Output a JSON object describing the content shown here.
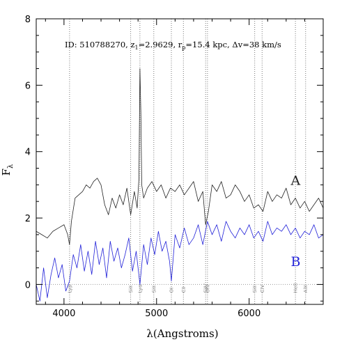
{
  "chart_data": {
    "type": "line",
    "xlabel": "λ(Angstroms)",
    "ylabel": "F",
    "ylabel_subscript": "λ",
    "xlim": [
      3700,
      6800
    ],
    "ylim": [
      -0.6,
      8
    ],
    "x_ticks": [
      4000,
      5000,
      6000
    ],
    "y_ticks": [
      0,
      2,
      4,
      6,
      8
    ],
    "grid": false,
    "annotation": {
      "prefix": "ID: 510788270, z",
      "z_sub": "1",
      "z_value": "=2.9629, r",
      "r_sub": "p",
      "rest": "=15.4 kpc, Δv=38 km/s"
    },
    "spectral_lines": [
      {
        "name": "Lyβ",
        "x": 4060
      },
      {
        "name": "SiII",
        "x": 4720
      },
      {
        "name": "Lyα",
        "x": 4820
      },
      {
        "name": "SiII",
        "x": 4970
      },
      {
        "name": "OI",
        "x": 5160
      },
      {
        "name": "CII",
        "x": 5290
      },
      {
        "name": "SiIV",
        "x": 5530
      },
      {
        "name": "OIV",
        "x": 5550
      },
      {
        "name": "SiII",
        "x": 6060
      },
      {
        "name": "CIV",
        "x": 6140
      },
      {
        "name": "HeII",
        "x": 6500
      },
      {
        "name": "AlII",
        "x": 6610
      }
    ],
    "series": [
      {
        "name": "A",
        "color": "#222222",
        "label_at": [
          6450,
          3.0
        ],
        "x": [
          3700,
          3760,
          3820,
          3880,
          3940,
          4000,
          4040,
          4060,
          4080,
          4120,
          4160,
          4200,
          4240,
          4280,
          4320,
          4360,
          4400,
          4440,
          4480,
          4520,
          4560,
          4600,
          4640,
          4680,
          4720,
          4760,
          4790,
          4810,
          4820,
          4830,
          4840,
          4860,
          4900,
          4950,
          5000,
          5050,
          5100,
          5150,
          5200,
          5250,
          5300,
          5350,
          5400,
          5450,
          5500,
          5530,
          5560,
          5600,
          5650,
          5700,
          5750,
          5800,
          5850,
          5900,
          5950,
          6000,
          6050,
          6100,
          6150,
          6200,
          6250,
          6300,
          6350,
          6400,
          6450,
          6500,
          6550,
          6600,
          6650,
          6700,
          6750,
          6800
        ],
        "y": [
          1.6,
          1.5,
          1.4,
          1.6,
          1.7,
          1.8,
          1.5,
          1.2,
          1.9,
          2.6,
          2.7,
          2.8,
          3.0,
          2.9,
          3.1,
          3.2,
          3.0,
          2.4,
          2.1,
          2.6,
          2.3,
          2.7,
          2.4,
          2.9,
          2.1,
          2.8,
          2.3,
          3.2,
          6.5,
          5.2,
          3.0,
          2.6,
          2.9,
          3.1,
          2.8,
          3.0,
          2.6,
          2.9,
          2.8,
          3.0,
          2.7,
          2.9,
          3.1,
          2.5,
          2.8,
          1.8,
          2.2,
          3.0,
          2.8,
          3.1,
          2.6,
          2.7,
          3.0,
          2.8,
          2.5,
          2.7,
          2.3,
          2.4,
          2.2,
          2.8,
          2.5,
          2.7,
          2.6,
          2.9,
          2.4,
          2.6,
          2.3,
          2.5,
          2.2,
          2.4,
          2.6,
          2.3
        ]
      },
      {
        "name": "B",
        "color": "#2020d8",
        "label_at": [
          6450,
          0.55
        ],
        "x": [
          3700,
          3740,
          3780,
          3820,
          3860,
          3900,
          3940,
          3980,
          4020,
          4060,
          4100,
          4140,
          4180,
          4220,
          4260,
          4300,
          4340,
          4380,
          4420,
          4460,
          4500,
          4540,
          4580,
          4620,
          4660,
          4700,
          4740,
          4780,
          4820,
          4860,
          4900,
          4940,
          4980,
          5020,
          5060,
          5100,
          5140,
          5160,
          5200,
          5250,
          5300,
          5350,
          5400,
          5450,
          5500,
          5550,
          5600,
          5650,
          5700,
          5750,
          5800,
          5850,
          5900,
          5950,
          6000,
          6050,
          6100,
          6150,
          6200,
          6250,
          6300,
          6350,
          6400,
          6450,
          6500,
          6550,
          6600,
          6650,
          6700,
          6750,
          6800
        ],
        "y": [
          0.0,
          -0.5,
          0.5,
          -0.4,
          0.3,
          0.8,
          0.2,
          0.6,
          -0.2,
          0.1,
          0.9,
          0.5,
          1.2,
          0.4,
          1.0,
          0.3,
          1.3,
          0.6,
          1.1,
          0.2,
          1.3,
          0.7,
          1.1,
          0.5,
          0.9,
          1.4,
          0.4,
          1.0,
          0.0,
          1.2,
          0.6,
          1.4,
          0.9,
          1.6,
          1.0,
          1.3,
          0.7,
          0.1,
          1.5,
          1.1,
          1.7,
          1.2,
          1.4,
          1.8,
          1.2,
          1.9,
          1.5,
          1.8,
          1.3,
          1.9,
          1.6,
          1.4,
          1.7,
          1.5,
          1.8,
          1.4,
          1.6,
          1.3,
          1.9,
          1.5,
          1.7,
          1.6,
          1.8,
          1.5,
          1.7,
          1.4,
          1.6,
          1.5,
          1.8,
          1.4,
          1.5
        ]
      }
    ]
  }
}
